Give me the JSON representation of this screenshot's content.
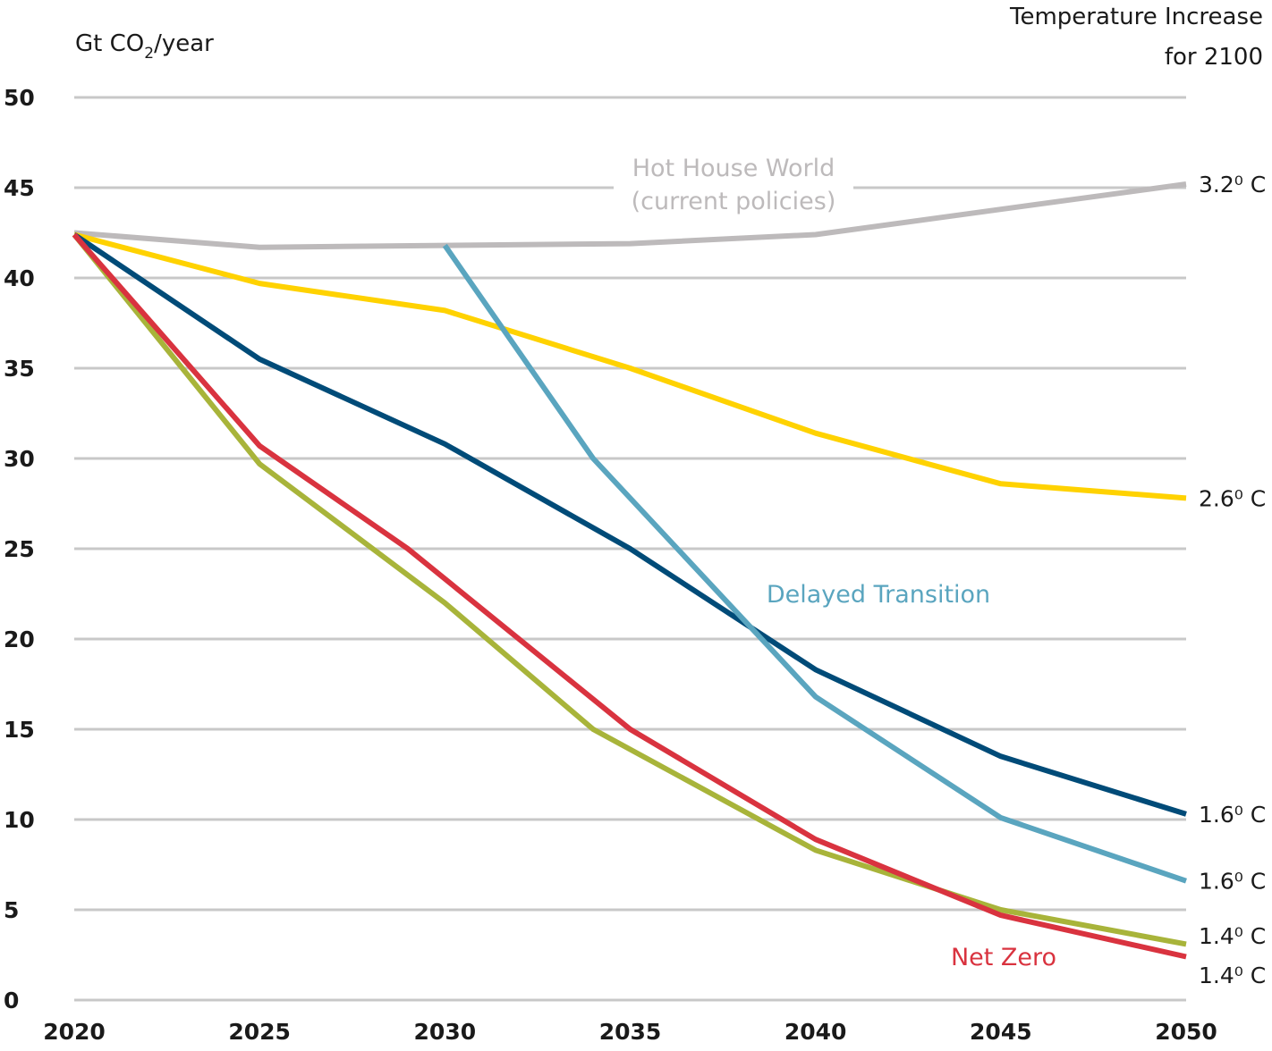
{
  "chart_data": {
    "type": "line",
    "ylabel_prefix": "Gt CO",
    "ylabel_sub": "2",
    "ylabel_suffix": "/year",
    "right_title_line1": "Temperature Increase",
    "right_title_line2": "for 2100",
    "xlim": [
      2020,
      2050
    ],
    "ylim": [
      0,
      50
    ],
    "x_ticks": [
      "2020",
      "2025",
      "2030",
      "2035",
      "2040",
      "2045",
      "2050"
    ],
    "y_ticks": [
      "0",
      "5",
      "10",
      "15",
      "20",
      "25",
      "30",
      "35",
      "40",
      "45",
      "50"
    ],
    "grid": true,
    "series": [
      {
        "name": "Hot House World",
        "name_line2": "(current policies)",
        "color": "#bdbabb",
        "end_label": "3.2⁰ C",
        "points": [
          [
            2020,
            42.5
          ],
          [
            2025,
            41.7
          ],
          [
            2030,
            41.8
          ],
          [
            2035,
            41.9
          ],
          [
            2040,
            42.4
          ],
          [
            2045,
            43.8
          ],
          [
            2050,
            45.2
          ]
        ]
      },
      {
        "name": "",
        "color": "#ffd200",
        "end_label": "2.6⁰ C",
        "points": [
          [
            2020,
            42.4
          ],
          [
            2025,
            39.7
          ],
          [
            2030,
            38.2
          ],
          [
            2035,
            35.0
          ],
          [
            2040,
            31.4
          ],
          [
            2045,
            28.6
          ],
          [
            2050,
            27.8
          ]
        ]
      },
      {
        "name": "",
        "color": "#004b78",
        "end_label": "1.6⁰ C",
        "points": [
          [
            2020,
            42.4
          ],
          [
            2025,
            35.5
          ],
          [
            2030,
            30.8
          ],
          [
            2035,
            25.0
          ],
          [
            2040,
            18.3
          ],
          [
            2045,
            13.5
          ],
          [
            2050,
            10.3
          ]
        ]
      },
      {
        "name": "Delayed Transition",
        "color": "#5aa5bf",
        "end_label": "1.6⁰ C",
        "points": [
          [
            2030,
            41.8
          ],
          [
            2034,
            30.0
          ],
          [
            2040,
            16.8
          ],
          [
            2045,
            10.1
          ],
          [
            2050,
            6.6
          ]
        ]
      },
      {
        "name": "",
        "color": "#a8b43a",
        "end_label": "1.4⁰ C",
        "points": [
          [
            2020,
            42.4
          ],
          [
            2025,
            29.7
          ],
          [
            2030,
            22.0
          ],
          [
            2034,
            15.0
          ],
          [
            2040,
            8.3
          ],
          [
            2045,
            5.0
          ],
          [
            2050,
            3.1
          ]
        ]
      },
      {
        "name": "Net Zero",
        "color": "#d9333f",
        "end_label": "1.4⁰ C",
        "points": [
          [
            2020,
            42.4
          ],
          [
            2025,
            30.7
          ],
          [
            2029,
            25.0
          ],
          [
            2035,
            15.0
          ],
          [
            2040,
            8.9
          ],
          [
            2045,
            4.7
          ],
          [
            2050,
            2.4
          ]
        ]
      }
    ]
  }
}
